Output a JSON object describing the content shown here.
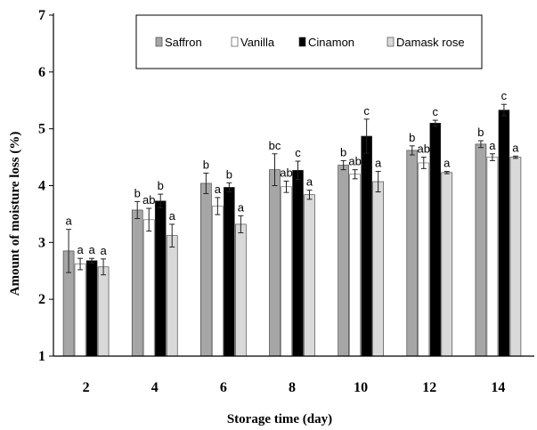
{
  "chart_data": {
    "type": "bar",
    "xlabel": "Storage time (day)",
    "ylabel": "Amount of moisture loss  (%)",
    "ylim": [
      1,
      7
    ],
    "yticks": [
      "1",
      "2",
      "3",
      "4",
      "5",
      "6",
      "7"
    ],
    "categories": [
      "2",
      "4",
      "6",
      "8",
      "10",
      "12",
      "14"
    ],
    "grid": false,
    "legend_position": "top",
    "series": [
      {
        "name": "Saffron",
        "color": "#a6a6a6",
        "values": [
          2.85,
          3.57,
          4.04,
          4.28,
          4.36,
          4.62,
          4.73
        ],
        "errors": [
          0.38,
          0.15,
          0.18,
          0.28,
          0.08,
          0.08,
          0.06
        ],
        "labels": [
          "a",
          "b",
          "b",
          "bc",
          "b",
          "b",
          "b"
        ]
      },
      {
        "name": "Vanilla",
        "color": "#ffffff",
        "values": [
          2.62,
          3.4,
          3.64,
          3.98,
          4.2,
          4.4,
          4.5
        ],
        "errors": [
          0.1,
          0.2,
          0.15,
          0.1,
          0.08,
          0.1,
          0.06
        ],
        "labels": [
          "a",
          "ab",
          "a",
          "ab",
          "ab",
          "ab",
          "a"
        ]
      },
      {
        "name": "Cinamon",
        "color": "#000000",
        "values": [
          2.68,
          3.73,
          3.97,
          4.27,
          4.87,
          5.1,
          5.33
        ],
        "errors": [
          0.04,
          0.12,
          0.08,
          0.16,
          0.3,
          0.05,
          0.1
        ],
        "labels": [
          "a",
          "b",
          "b",
          "c",
          "c",
          "c",
          "c"
        ]
      },
      {
        "name": "Damask rose",
        "color": "#d9d9d9",
        "values": [
          2.57,
          3.12,
          3.32,
          3.84,
          4.07,
          4.23,
          4.5
        ],
        "errors": [
          0.14,
          0.2,
          0.15,
          0.08,
          0.18,
          0.02,
          0.02
        ],
        "labels": [
          "a",
          "a",
          "a",
          "a",
          "a",
          "a",
          "a"
        ]
      }
    ]
  }
}
